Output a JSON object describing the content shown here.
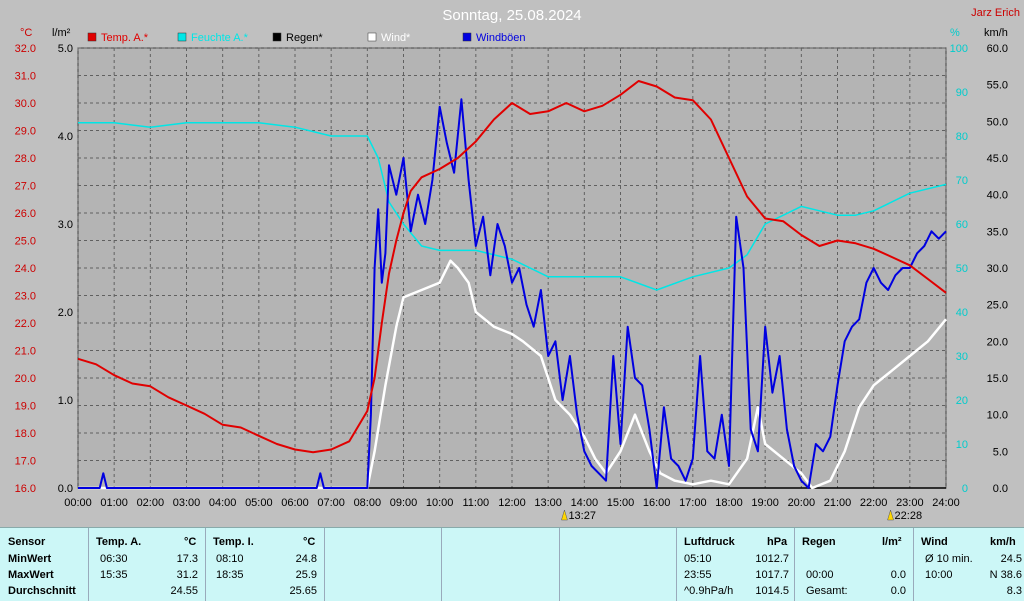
{
  "title": "Sonntag, 25.08.2024",
  "author": "Jarz Erich",
  "units": {
    "temp": "°C",
    "rain": "l/m²",
    "humidity": "%",
    "wind": "km/h"
  },
  "colors": {
    "temp": "#e00000",
    "humidity": "#00e6e6",
    "rain": "#000000",
    "wind": "#ffffff",
    "gust": "#0000e0",
    "plot_bg": "#b4b4b4",
    "grid": "#606060"
  },
  "legend": [
    {
      "label": "Temp. A.*",
      "color": "#e00000"
    },
    {
      "label": "Feuchte A.*",
      "color": "#00e6e6"
    },
    {
      "label": "Regen*",
      "color": "#000000"
    },
    {
      "label": "Wind*",
      "color": "#ffffff"
    },
    {
      "label": "Windböen",
      "color": "#0000e0"
    }
  ],
  "time_markers": [
    "13:27",
    "22:28"
  ],
  "chart_data": {
    "type": "line",
    "title": "Sonntag, 25.08.2024",
    "x_ticks": [
      "00:00",
      "01:00",
      "02:00",
      "03:00",
      "04:00",
      "05:00",
      "06:00",
      "07:00",
      "08:00",
      "09:00",
      "10:00",
      "11:00",
      "12:00",
      "13:00",
      "14:00",
      "15:00",
      "16:00",
      "17:00",
      "18:00",
      "19:00",
      "20:00",
      "21:00",
      "22:00",
      "23:00",
      "24:00"
    ],
    "temp_axis": {
      "ticks": [
        "32.0",
        "31.0",
        "30.0",
        "29.0",
        "28.0",
        "27.0",
        "26.0",
        "25.0",
        "24.0",
        "23.0",
        "22.0",
        "21.0",
        "20.0",
        "19.0",
        "18.0",
        "17.0",
        "16.0"
      ],
      "range": [
        16,
        32
      ]
    },
    "rain_axis": {
      "ticks": [
        "5.0",
        "4.0",
        "3.0",
        "2.0",
        "1.0",
        "0.0"
      ],
      "range": [
        0,
        5
      ]
    },
    "humidity_axis": {
      "ticks": [
        "100",
        "90",
        "80",
        "70",
        "60",
        "50",
        "40",
        "30",
        "20",
        "10",
        "0"
      ],
      "range": [
        0,
        100
      ]
    },
    "wind_axis": {
      "ticks": [
        "60.0",
        "55.0",
        "50.0",
        "45.0",
        "40.0",
        "35.0",
        "30.0",
        "25.0",
        "20.0",
        "15.0",
        "10.0",
        "5.0",
        "0.0"
      ],
      "range": [
        0,
        60
      ]
    },
    "series": [
      {
        "name": "Temp. A.*",
        "axis": "temp",
        "x": [
          0,
          0.5,
          1,
          1.5,
          2,
          2.5,
          3,
          3.5,
          4,
          4.5,
          5,
          5.5,
          6,
          6.5,
          7,
          7.5,
          8,
          8.2,
          8.4,
          8.6,
          8.8,
          9,
          9.2,
          9.5,
          10,
          10.5,
          11,
          11.5,
          12,
          12.5,
          13,
          13.5,
          14,
          14.5,
          15,
          15.5,
          16,
          16.5,
          17,
          17.5,
          18,
          18.5,
          19,
          19.5,
          20,
          20.5,
          21,
          21.5,
          22,
          22.5,
          23,
          23.5,
          24
        ],
        "values": [
          20.7,
          20.5,
          20.1,
          19.8,
          19.7,
          19.3,
          19.0,
          18.7,
          18.3,
          18.2,
          17.9,
          17.6,
          17.4,
          17.3,
          17.4,
          17.7,
          18.8,
          20.0,
          22.0,
          23.8,
          25.0,
          26.0,
          26.8,
          27.3,
          27.6,
          28.0,
          28.6,
          29.4,
          30.0,
          29.6,
          29.7,
          30.0,
          29.7,
          29.9,
          30.3,
          30.8,
          30.6,
          30.2,
          30.1,
          29.4,
          28.0,
          26.6,
          25.8,
          25.7,
          25.2,
          24.8,
          25.0,
          24.9,
          24.7,
          24.4,
          24.1,
          23.6,
          23.1
        ]
      },
      {
        "name": "Feuchte A.*",
        "axis": "humidity",
        "x": [
          0,
          1,
          2,
          3,
          4,
          5,
          6,
          7,
          7.5,
          8,
          8.3,
          8.6,
          9,
          9.5,
          10,
          11,
          12,
          13,
          14,
          15,
          16,
          17,
          18,
          18.5,
          19,
          19.5,
          20,
          20.5,
          21,
          21.5,
          22,
          23,
          24
        ],
        "values": [
          83,
          83,
          82,
          83,
          83,
          83,
          82,
          80,
          80,
          80,
          75,
          65,
          60,
          55,
          54,
          54,
          52,
          48,
          48,
          48,
          45,
          48,
          50,
          53,
          60,
          62,
          64,
          63,
          62,
          62,
          63,
          67,
          69
        ]
      },
      {
        "name": "Regen*",
        "axis": "rain",
        "x": [
          0,
          24
        ],
        "values": [
          0,
          0
        ]
      },
      {
        "name": "Wind*",
        "axis": "wind",
        "x": [
          0,
          7.9,
          8,
          8.2,
          8.5,
          8.8,
          9,
          9.5,
          10,
          10.3,
          10.5,
          10.8,
          11,
          11.5,
          12,
          12.3,
          12.8,
          13.2,
          13.6,
          14,
          14.3,
          14.6,
          15,
          15.4,
          15.8,
          16.1,
          16.5,
          17,
          17.5,
          18,
          18.5,
          18.8,
          19,
          19.5,
          20,
          20.3,
          20.8,
          21.2,
          21.6,
          22,
          22.5,
          23,
          23.5,
          24
        ],
        "values": [
          0,
          0,
          0,
          5,
          14,
          22,
          26,
          27,
          28,
          31,
          30,
          28,
          24,
          22,
          21,
          20,
          18,
          12,
          10,
          7,
          4,
          2,
          5,
          10,
          5,
          2,
          1,
          0.5,
          1,
          0.5,
          4,
          11,
          6,
          4,
          2,
          0,
          1,
          5,
          11,
          14,
          16,
          18,
          20,
          23
        ]
      },
      {
        "name": "Windböen",
        "axis": "wind",
        "x": [
          0,
          0.6,
          0.7,
          0.8,
          6.6,
          6.7,
          6.8,
          8.0,
          8.1,
          8.2,
          8.3,
          8.4,
          8.5,
          8.6,
          8.8,
          9.0,
          9.2,
          9.4,
          9.6,
          9.8,
          10.0,
          10.2,
          10.4,
          10.6,
          10.8,
          11.0,
          11.2,
          11.4,
          11.6,
          11.8,
          12.0,
          12.2,
          12.4,
          12.6,
          12.8,
          13.0,
          13.2,
          13.4,
          13.6,
          13.8,
          14.0,
          14.2,
          14.4,
          14.6,
          14.8,
          15.0,
          15.2,
          15.4,
          15.6,
          15.8,
          16.0,
          16.2,
          16.4,
          16.6,
          16.8,
          17.0,
          17.2,
          17.4,
          17.6,
          17.8,
          18.0,
          18.2,
          18.4,
          18.6,
          18.8,
          19.0,
          19.2,
          19.4,
          19.6,
          19.8,
          20.0,
          20.2,
          20.4,
          20.6,
          20.8,
          21.0,
          21.2,
          21.4,
          21.6,
          21.8,
          22.0,
          22.2,
          22.4,
          22.6,
          22.8,
          23.0,
          23.2,
          23.4,
          23.6,
          23.8,
          24.0
        ],
        "values": [
          0,
          0,
          2,
          0,
          0,
          2,
          0,
          0,
          10,
          30,
          38,
          28,
          32,
          44,
          40,
          45,
          35,
          40,
          36,
          42,
          52,
          47,
          43,
          53,
          42,
          33,
          37,
          29,
          36,
          33,
          28,
          30,
          25,
          22,
          27,
          18,
          20,
          12,
          18,
          10,
          5,
          3,
          2,
          1,
          18,
          6,
          22,
          15,
          14,
          8,
          0,
          11,
          4,
          3,
          1,
          4,
          18,
          5,
          4,
          10,
          3,
          37,
          30,
          8,
          5,
          22,
          13,
          18,
          8,
          3,
          1,
          0,
          6,
          5,
          7,
          14,
          20,
          22,
          23,
          28,
          30,
          28,
          27,
          29,
          30,
          30,
          32,
          33,
          35,
          34,
          35
        ]
      }
    ]
  },
  "table": {
    "headers": {
      "sensor": "Sensor",
      "temp_a": "Temp. A.",
      "temp_a_unit": "°C",
      "temp_i": "Temp. I.",
      "temp_i_unit": "°C",
      "pressure": "Luftdruck",
      "pressure_unit": "hPa",
      "rain": "Regen",
      "rain_unit": "l/m²",
      "wind": "Wind",
      "wind_unit": "km/h"
    },
    "rows": [
      {
        "label": "MinWert",
        "ta_time": "06:30",
        "ta_val": "17.3",
        "ti_time": "08:10",
        "ti_val": "24.8",
        "p_time": "05:10",
        "p_val": "1012.7",
        "r_time": "",
        "r_val": "",
        "w_time": "Ø 10 min.",
        "w_val": "24.5"
      },
      {
        "label": "MaxWert",
        "ta_time": "15:35",
        "ta_val": "31.2",
        "ti_time": "18:35",
        "ti_val": "25.9",
        "p_time": "23:55",
        "p_val": "1017.7",
        "r_time": "00:00",
        "r_val": "0.0",
        "w_time": "10:00",
        "w_val": "N 38.6"
      },
      {
        "label": "Durchschnitt",
        "ta_time": "",
        "ta_val": "24.55",
        "ti_time": "",
        "ti_val": "25.65",
        "p_time": "^0.9hPa/h",
        "p_val": "1014.5",
        "r_time": "Gesamt:",
        "r_val": "0.0",
        "w_time": "",
        "w_val": "8.3"
      }
    ]
  }
}
